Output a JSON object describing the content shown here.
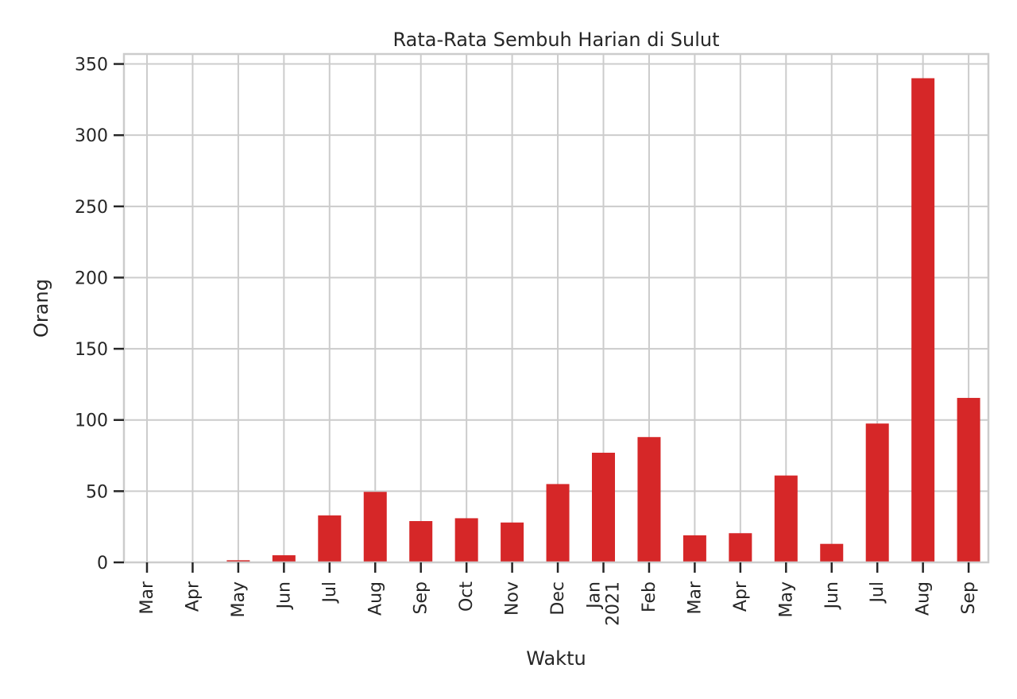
{
  "chart_data": {
    "type": "bar",
    "title": "Rata-Rata Sembuh Harian di Sulut",
    "xlabel": "Waktu",
    "ylabel": "Orang",
    "categories": [
      "Mar",
      "Apr",
      "May",
      "Jun",
      "Jul",
      "Aug",
      "Sep",
      "Oct",
      "Nov",
      "Dec",
      "Jan\n2021",
      "Feb",
      "Mar",
      "Apr",
      "May",
      "Jun",
      "Jul",
      "Aug",
      "Sep"
    ],
    "values": [
      0.3,
      0.5,
      1.5,
      5,
      33,
      49.5,
      29,
      31,
      28,
      55,
      77,
      88,
      19,
      20.5,
      61,
      13,
      97.5,
      340,
      115.5
    ],
    "ylim": [
      0,
      357
    ],
    "yticks": [
      0,
      50,
      100,
      150,
      200,
      250,
      300,
      350
    ],
    "grid": true,
    "bar_color": "#d62728"
  }
}
